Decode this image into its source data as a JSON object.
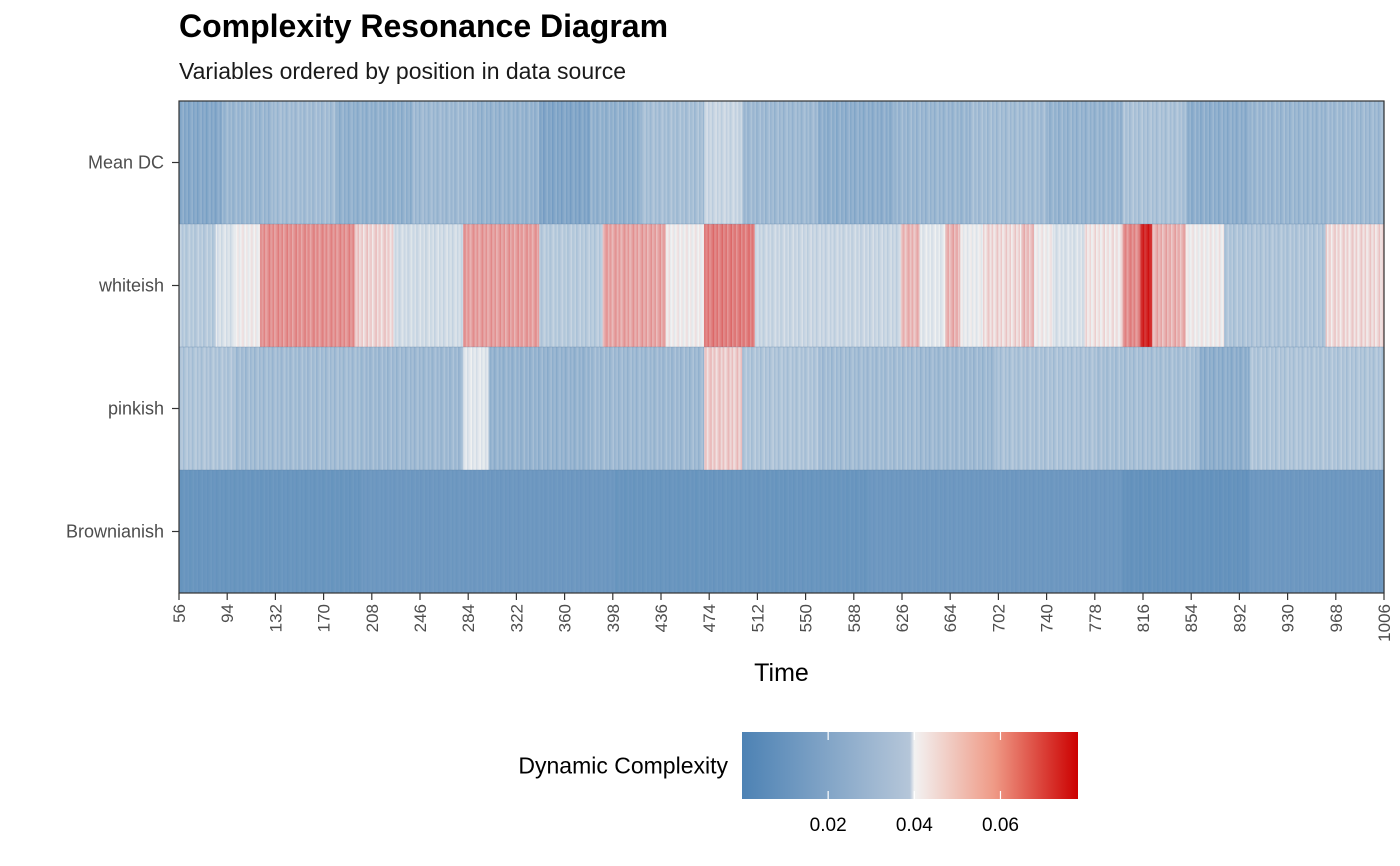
{
  "chart_data": {
    "type": "heatmap",
    "title": "Complexity Resonance Diagram",
    "subtitle": "Variables ordered by position in data source",
    "xlabel": "Time",
    "ylabel": "",
    "xlim": [
      56,
      1006
    ],
    "x_ticks": [
      56,
      94,
      132,
      170,
      208,
      246,
      284,
      322,
      360,
      398,
      436,
      474,
      512,
      550,
      588,
      626,
      664,
      702,
      740,
      778,
      816,
      854,
      892,
      930,
      968,
      1006
    ],
    "rows": [
      "Mean DC",
      "whiteish",
      "pinkish",
      "Brownianish"
    ],
    "legend": {
      "title": "Dynamic Complexity",
      "position": "bottom",
      "range": [
        0.0,
        0.078
      ],
      "ticks": [
        "0.02",
        "0.04",
        "0.06"
      ],
      "tick_values": [
        0.02,
        0.04,
        0.06
      ],
      "colors": {
        "low": "#4d82b4",
        "mid": "#f2f2f2",
        "high": "#cc0000"
      },
      "midpoint": 0.04
    },
    "series": [
      {
        "name": "Mean DC",
        "segments": [
          {
            "x": [
              56,
              90
            ],
            "value": 0.014
          },
          {
            "x": [
              90,
              130
            ],
            "value": 0.019
          },
          {
            "x": [
              130,
              180
            ],
            "value": 0.021
          },
          {
            "x": [
              180,
              240
            ],
            "value": 0.017
          },
          {
            "x": [
              240,
              290
            ],
            "value": 0.02
          },
          {
            "x": [
              290,
              340
            ],
            "value": 0.018
          },
          {
            "x": [
              340,
              380
            ],
            "value": 0.013
          },
          {
            "x": [
              380,
              420
            ],
            "value": 0.017
          },
          {
            "x": [
              420,
              470
            ],
            "value": 0.022
          },
          {
            "x": [
              470,
              500
            ],
            "value": 0.03
          },
          {
            "x": [
              500,
              560
            ],
            "value": 0.02
          },
          {
            "x": [
              560,
              620
            ],
            "value": 0.016
          },
          {
            "x": [
              620,
              680
            ],
            "value": 0.019
          },
          {
            "x": [
              680,
              740
            ],
            "value": 0.021
          },
          {
            "x": [
              740,
              800
            ],
            "value": 0.018
          },
          {
            "x": [
              800,
              850
            ],
            "value": 0.023
          },
          {
            "x": [
              850,
              900
            ],
            "value": 0.016
          },
          {
            "x": [
              900,
              960
            ],
            "value": 0.019
          },
          {
            "x": [
              960,
              1006
            ],
            "value": 0.02
          }
        ]
      },
      {
        "name": "whiteish",
        "segments": [
          {
            "x": [
              56,
              85
            ],
            "value": 0.026
          },
          {
            "x": [
              85,
              100
            ],
            "value": 0.034
          },
          {
            "x": [
              100,
              120
            ],
            "value": 0.04
          },
          {
            "x": [
              120,
              195
            ],
            "value": 0.055
          },
          {
            "x": [
              195,
              225
            ],
            "value": 0.045
          },
          {
            "x": [
              225,
              280
            ],
            "value": 0.032
          },
          {
            "x": [
              280,
              340
            ],
            "value": 0.053
          },
          {
            "x": [
              340,
              390
            ],
            "value": 0.026
          },
          {
            "x": [
              390,
              440
            ],
            "value": 0.052
          },
          {
            "x": [
              440,
              470
            ],
            "value": 0.04
          },
          {
            "x": [
              470,
              510
            ],
            "value": 0.058
          },
          {
            "x": [
              510,
              625
            ],
            "value": 0.03
          },
          {
            "x": [
              625,
              640
            ],
            "value": 0.049
          },
          {
            "x": [
              640,
              660
            ],
            "value": 0.036
          },
          {
            "x": [
              660,
              672
            ],
            "value": 0.05
          },
          {
            "x": [
              672,
              690
            ],
            "value": 0.038
          },
          {
            "x": [
              690,
              720
            ],
            "value": 0.044
          },
          {
            "x": [
              720,
              730
            ],
            "value": 0.048
          },
          {
            "x": [
              730,
              745
            ],
            "value": 0.04
          },
          {
            "x": [
              745,
              770
            ],
            "value": 0.034
          },
          {
            "x": [
              770,
              800
            ],
            "value": 0.042
          },
          {
            "x": [
              800,
              814
            ],
            "value": 0.056
          },
          {
            "x": [
              814,
              823
            ],
            "value": 0.072
          },
          {
            "x": [
              823,
              850
            ],
            "value": 0.05
          },
          {
            "x": [
              850,
              880
            ],
            "value": 0.04
          },
          {
            "x": [
              880,
              960
            ],
            "value": 0.024
          },
          {
            "x": [
              960,
              1006
            ],
            "value": 0.044
          }
        ]
      },
      {
        "name": "pinkish",
        "segments": [
          {
            "x": [
              56,
              100
            ],
            "value": 0.024
          },
          {
            "x": [
              100,
              200
            ],
            "value": 0.021
          },
          {
            "x": [
              200,
              280
            ],
            "value": 0.02
          },
          {
            "x": [
              280,
              300
            ],
            "value": 0.036
          },
          {
            "x": [
              300,
              380
            ],
            "value": 0.018
          },
          {
            "x": [
              380,
              470
            ],
            "value": 0.02
          },
          {
            "x": [
              470,
              500
            ],
            "value": 0.046
          },
          {
            "x": [
              500,
              560
            ],
            "value": 0.024
          },
          {
            "x": [
              560,
              640
            ],
            "value": 0.021
          },
          {
            "x": [
              640,
              700
            ],
            "value": 0.02
          },
          {
            "x": [
              700,
              780
            ],
            "value": 0.023
          },
          {
            "x": [
              780,
              860
            ],
            "value": 0.022
          },
          {
            "x": [
              860,
              900
            ],
            "value": 0.016
          },
          {
            "x": [
              900,
              1006
            ],
            "value": 0.024
          }
        ]
      },
      {
        "name": "Brownianish",
        "segments": [
          {
            "x": [
              56,
              200
            ],
            "value": 0.007
          },
          {
            "x": [
              200,
              400
            ],
            "value": 0.008
          },
          {
            "x": [
              400,
              600
            ],
            "value": 0.007
          },
          {
            "x": [
              600,
              800
            ],
            "value": 0.008
          },
          {
            "x": [
              800,
              900
            ],
            "value": 0.006
          },
          {
            "x": [
              900,
              1006
            ],
            "value": 0.008
          }
        ]
      }
    ]
  }
}
